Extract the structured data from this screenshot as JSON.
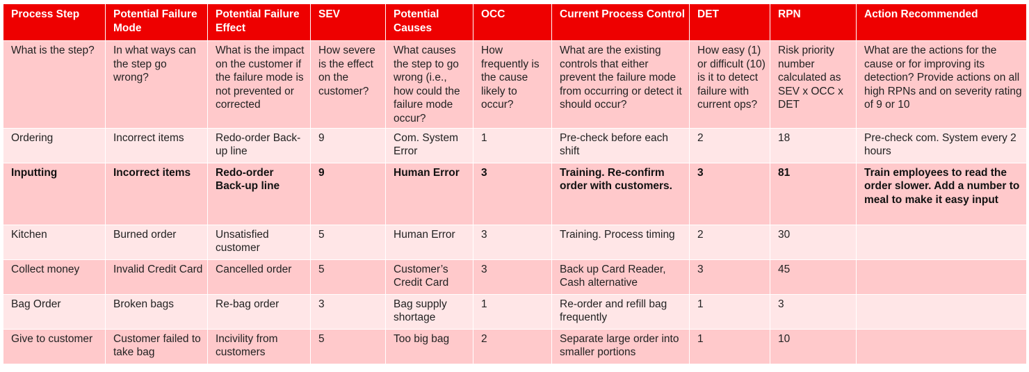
{
  "table": {
    "columns": [
      "Process Step",
      "Potential Failure Mode",
      "Potential Failure Effect",
      "SEV",
      "Potential Causes",
      "OCC",
      "Current Process Control",
      "DET",
      "RPN",
      "Action Recommended"
    ],
    "description_row": [
      "What is the step?",
      "In what ways can the step go wrong?",
      "What is the impact on the customer if the failure mode is not prevented or corrected",
      "How severe is the effect on the customer?",
      "What causes the step to go wrong (i.e., how could the failure mode occur?",
      "How frequently is the cause likely to occur?",
      "What are the existing controls that either prevent the failure mode from occurring or detect it should occur?",
      "How easy (1) or difficult (10) is it to detect failure with current ops?",
      "Risk priority number calculated as SEV x OCC x DET",
      "What are the actions for the cause or for improving its detection? Provide actions on all high RPNs and on severity rating of 9 or 10"
    ],
    "rows": [
      {
        "process_step": "Ordering",
        "failure_mode": "Incorrect items",
        "failure_effect": "Redo-order Back-up line",
        "sev": "9",
        "causes": "Com. System Error",
        "occ": "1",
        "control": "Pre-check before each shift",
        "det": "2",
        "rpn": "18",
        "action": "Pre-check com. System every 2 hours"
      },
      {
        "process_step": "Inputting",
        "failure_mode": "Incorrect items",
        "failure_effect": "Redo-order Back-up line",
        "sev": "9",
        "causes": "Human Error",
        "occ": "3",
        "control": "Training. Re-confirm order with customers.",
        "det": "3",
        "rpn": "81",
        "action": "Train employees to read the order slower. Add a number to meal to make it easy input"
      },
      {
        "process_step": "Kitchen",
        "failure_mode": "Burned order",
        "failure_effect": "Unsatisfied customer",
        "sev": "5",
        "causes": "Human Error",
        "occ": "3",
        "control": "Training. Process timing",
        "det": "2",
        "rpn": "30",
        "action": ""
      },
      {
        "process_step": "Collect money",
        "failure_mode": "Invalid Credit Card",
        "failure_effect": "Cancelled order",
        "sev": "5",
        "causes": "Customer’s Credit Card",
        "occ": "3",
        "control": "Back up Card Reader, Cash alternative",
        "det": "3",
        "rpn": "45",
        "action": ""
      },
      {
        "process_step": "Bag Order",
        "failure_mode": "Broken bags",
        "failure_effect": "Re-bag order",
        "sev": "3",
        "causes": "Bag supply shortage",
        "occ": "1",
        "control": "Re-order and refill bag frequently",
        "det": "1",
        "rpn": "3",
        "action": ""
      },
      {
        "process_step": "Give to customer",
        "failure_mode": "Customer failed to take bag",
        "failure_effect": "Incivility from customers",
        "sev": "5",
        "causes": "Too big bag",
        "occ": "2",
        "control": "Separate large order into smaller portions",
        "det": "1",
        "rpn": "10",
        "action": ""
      }
    ]
  },
  "colors": {
    "header_bg": "#ee0000",
    "header_text": "#ffffff",
    "row_dark": "#ffc9cb",
    "row_light": "#ffe6e7",
    "text": "#222222"
  }
}
